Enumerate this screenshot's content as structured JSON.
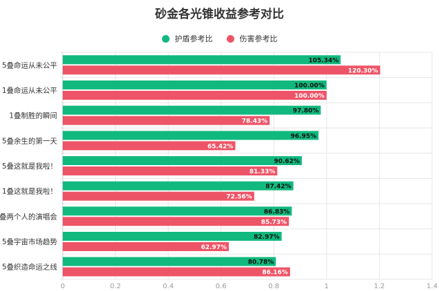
{
  "chart_data": {
    "type": "bar",
    "orientation": "horizontal",
    "title": "砂金各光锥收益参考对比",
    "xlim": [
      0,
      1.4
    ],
    "xticks": [
      "0",
      "0.2",
      "0.4",
      "0.6",
      "0.8",
      "1",
      "1.2",
      "1.4"
    ],
    "grid": true,
    "legend_position": "top",
    "categories": [
      "5叠命运从未公平",
      "1叠命运从未公平",
      "1叠制胜的瞬间",
      "5叠余生的第一天",
      "5叠这就是我啦！",
      "1叠这就是我啦！",
      "叠两个人的演唱会",
      "5叠宇宙市场趋势",
      "5叠织造命运之线"
    ],
    "series": [
      {
        "name": "护盾参考比",
        "color": "#11b97e",
        "values": [
          1.0534,
          1.0,
          0.978,
          0.9695,
          0.9062,
          0.8742,
          0.8683,
          0.8297,
          0.8078
        ],
        "labels": [
          "105.34%",
          "100.00%",
          "97.80%",
          "96.95%",
          "90.62%",
          "87.42%",
          "86.83%",
          "82.97%",
          "80.78%"
        ]
      },
      {
        "name": "伤害参考比",
        "color": "#ee5467",
        "values": [
          1.203,
          1.0,
          0.7843,
          0.6542,
          0.8133,
          0.7256,
          0.8573,
          0.6297,
          0.8616
        ],
        "labels": [
          "120.30%",
          "100.00%",
          "78.43%",
          "65.42%",
          "81.33%",
          "72.56%",
          "85.73%",
          "62.97%",
          "86.16%"
        ]
      }
    ]
  }
}
